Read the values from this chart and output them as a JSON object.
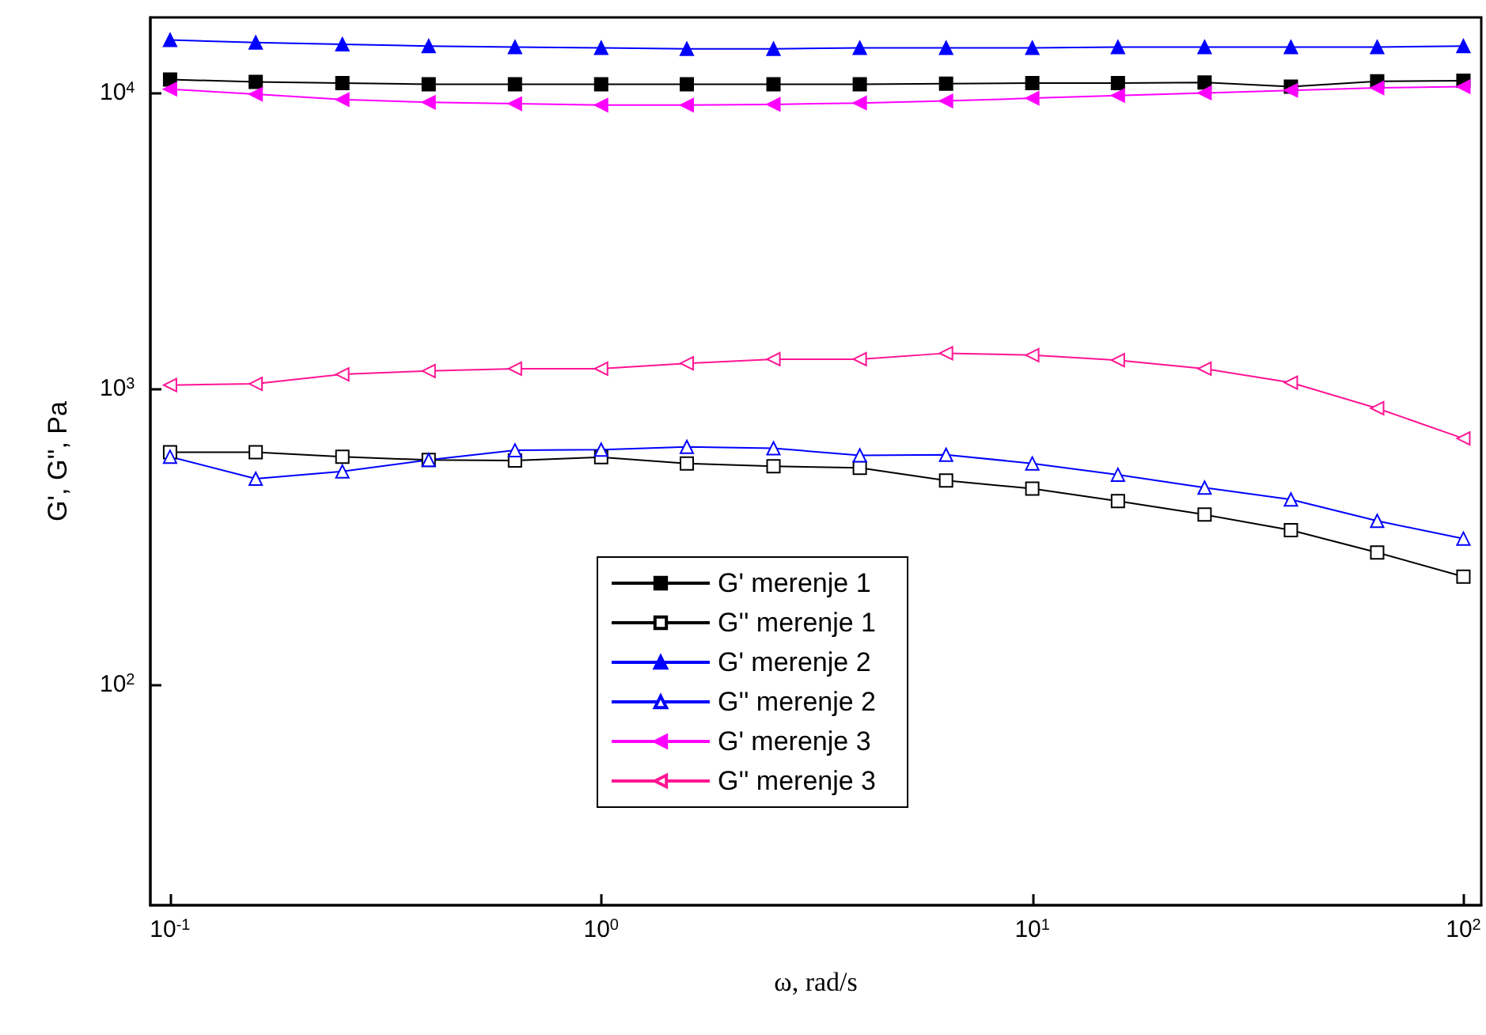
{
  "chart_data": {
    "type": "line",
    "xlabel": "ω, rad/s",
    "ylabel": "G', G'', Pa",
    "log": "xy",
    "grid": false,
    "legend": "bottom",
    "x": [
      0.1,
      0.158,
      0.251,
      0.398,
      0.631,
      1,
      1.58,
      2.51,
      3.98,
      6.31,
      10,
      15.8,
      25.1,
      39.8,
      63.1,
      100
    ],
    "xlim": [
      0.09,
      110
    ],
    "xticks": [
      {
        "value": 0.1,
        "label": "10$^{-1}$"
      },
      {
        "value": 1,
        "label": "10$^{0}$"
      },
      {
        "value": 10,
        "label": "10$^{1}$"
      },
      {
        "value": 100,
        "label": "10$^{2}$"
      }
    ],
    "ylim": [
      18,
      18000
    ],
    "yticks": [
      {
        "value": 100,
        "label": "10$^{2}$"
      },
      {
        "value": 1000,
        "label": "10$^{3}$"
      },
      {
        "value": 10000,
        "label": "10$^{4}$"
      }
    ],
    "series": [
      {
        "name": "G' merenje 1",
        "color": "#000000",
        "marker": "square",
        "values": [
          11100,
          10900,
          10800,
          10700,
          10700,
          10700,
          10700,
          10700,
          10700,
          10750,
          10800,
          10800,
          10850,
          10500,
          10950,
          11000
        ]
      },
      {
        "name": "G'' merenje 1",
        "color": "#000000",
        "marker": "square-open",
        "values": [
          611,
          611,
          590,
          575,
          573,
          588,
          560,
          548,
          541,
          490,
          460,
          418,
          376,
          333,
          280,
          232
        ]
      },
      {
        "name": "G' merenje 2",
        "color": "#0000ff",
        "marker": "triangle",
        "values": [
          15100,
          14800,
          14600,
          14400,
          14300,
          14200,
          14100,
          14100,
          14200,
          14200,
          14200,
          14300,
          14300,
          14300,
          14300,
          14400
        ]
      },
      {
        "name": "G'' merenje 2",
        "color": "#0000ff",
        "marker": "triangle-open",
        "values": [
          590,
          497,
          526,
          575,
          620,
          623,
          637,
          630,
          596,
          599,
          560,
          513,
          464,
          423,
          358,
          312
        ]
      },
      {
        "name": "G' merenje 3",
        "color": "#ff00ff",
        "marker": "triangle-left",
        "values": [
          10300,
          9900,
          9500,
          9300,
          9200,
          9100,
          9100,
          9150,
          9250,
          9400,
          9600,
          9800,
          10000,
          10200,
          10400,
          10500
        ]
      },
      {
        "name": "G'' merenje 3",
        "color": "#ff1493",
        "marker": "triangle-left-open",
        "values": [
          1030,
          1040,
          1120,
          1150,
          1170,
          1170,
          1220,
          1260,
          1260,
          1320,
          1300,
          1250,
          1170,
          1050,
          860,
          680
        ]
      }
    ]
  }
}
